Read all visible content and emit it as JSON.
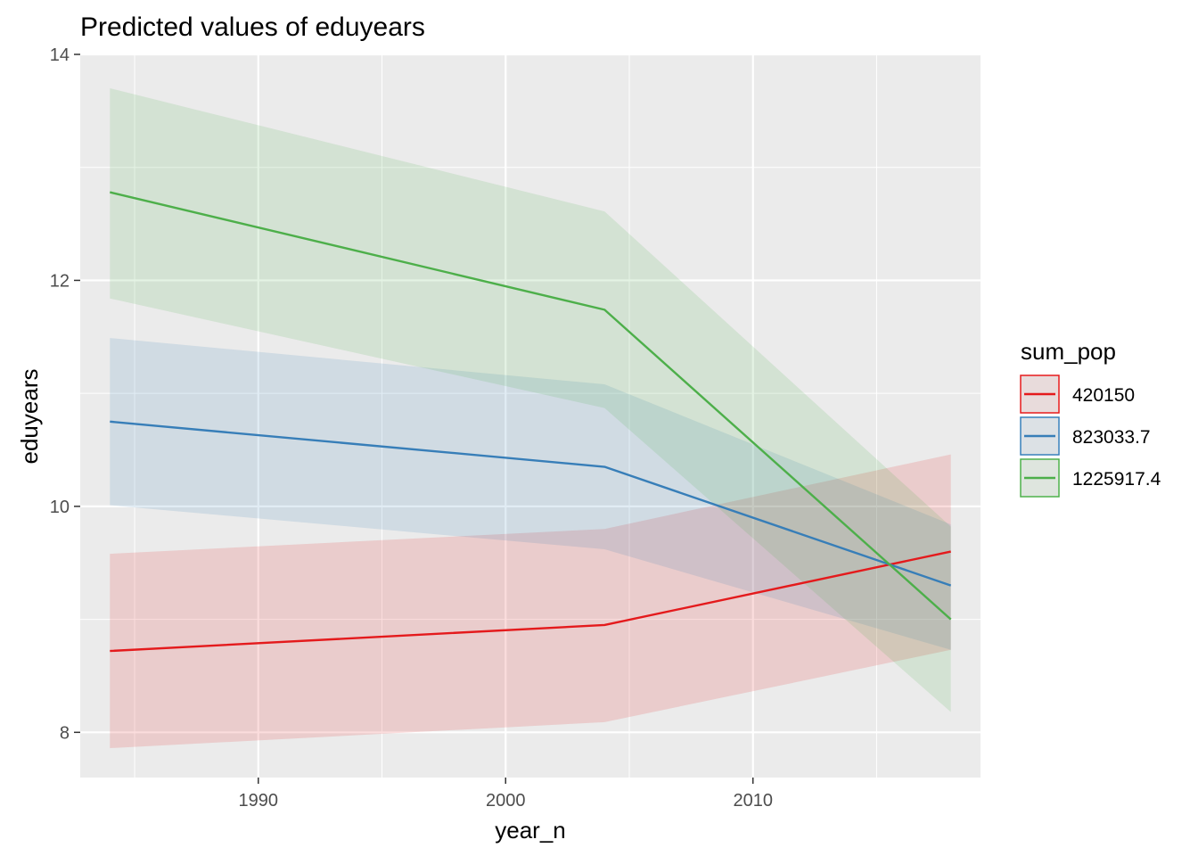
{
  "chart_data": {
    "type": "line",
    "title": "Predicted values of eduyears",
    "xlabel": "year_n",
    "ylabel": "eduyears",
    "xlim": [
      1982.8,
      2019.2
    ],
    "ylim": [
      7.6,
      14.0
    ],
    "x_ticks": [
      1990,
      2000,
      2010
    ],
    "x_tick_labels": [
      "1990",
      "2000",
      "2010"
    ],
    "y_ticks": [
      8,
      10,
      12,
      14
    ],
    "y_tick_labels": [
      "8",
      "10",
      "12",
      "14"
    ],
    "grid": true,
    "legend": {
      "title": "sum_pop",
      "position": "right"
    },
    "x": [
      1984,
      2004,
      2018
    ],
    "series": [
      {
        "name": "420150",
        "color": "#e41a1c",
        "values": [
          8.72,
          8.95,
          9.6
        ],
        "lower": [
          7.86,
          8.09,
          8.73
        ],
        "upper": [
          9.58,
          9.8,
          10.46
        ]
      },
      {
        "name": "823033.7",
        "color": "#377eb8",
        "values": [
          10.75,
          10.35,
          9.3
        ],
        "lower": [
          10.01,
          9.62,
          8.73
        ],
        "upper": [
          11.49,
          11.08,
          9.84
        ]
      },
      {
        "name": "1225917.4",
        "color": "#4daf4a",
        "values": [
          12.78,
          11.74,
          9.0
        ],
        "lower": [
          11.84,
          10.87,
          8.18
        ],
        "upper": [
          13.7,
          12.61,
          9.82
        ]
      }
    ]
  }
}
